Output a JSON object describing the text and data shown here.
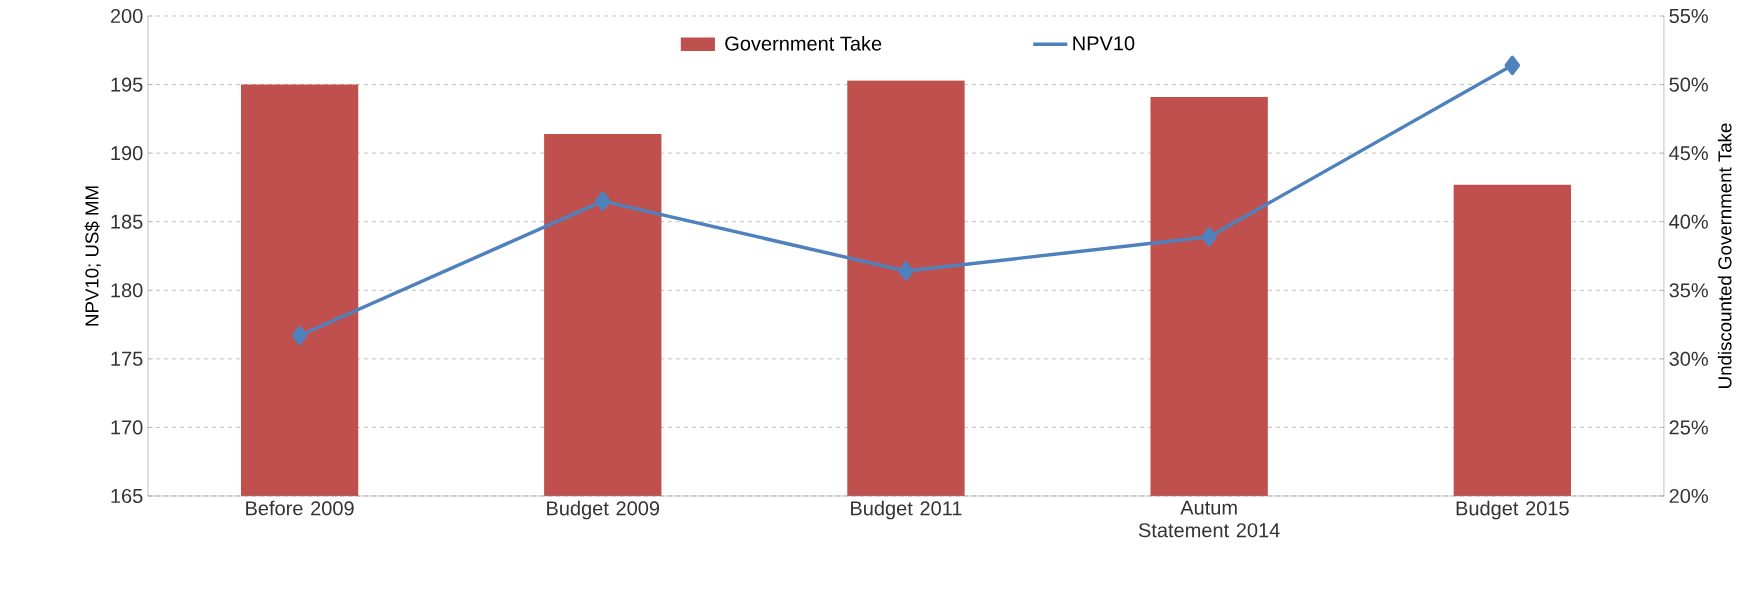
{
  "chart_data": {
    "type": "bar",
    "ylabel": "NPV10; US$ MM",
    "y2label": "Undiscounted Government Take",
    "categories": [
      "Before 2009",
      "Budget 2009",
      "Budget 2011",
      "Autum Statement 2014",
      "Budget 2015"
    ],
    "series": [
      {
        "name": "Government Take",
        "axis": "y2",
        "color": "#c0504d",
        "values": [
          50.0,
          46.4,
          50.3,
          49.1,
          42.7
        ]
      },
      {
        "name": "NPV10",
        "type": "line",
        "color": "#4f81bd",
        "marker": "diamond",
        "line_style": "solid",
        "values": [
          176.7,
          186.5,
          181.4,
          183.9,
          196.4
        ]
      }
    ],
    "ylim": [
      165,
      200
    ],
    "yticks": [
      165,
      170,
      175,
      180,
      185,
      190,
      195,
      200
    ],
    "y2lim": [
      20,
      55
    ],
    "y2ticks": [
      {
        "value": 20,
        "label": "20%"
      },
      {
        "value": 25,
        "label": "25%"
      },
      {
        "value": 30,
        "label": "30%"
      },
      {
        "value": 35,
        "label": "35%"
      },
      {
        "value": 40,
        "label": "40%"
      },
      {
        "value": 45,
        "label": "45%"
      },
      {
        "value": 50,
        "label": "50%"
      },
      {
        "value": 55,
        "label": "55%"
      }
    ],
    "grid": "y",
    "legend": "top"
  }
}
